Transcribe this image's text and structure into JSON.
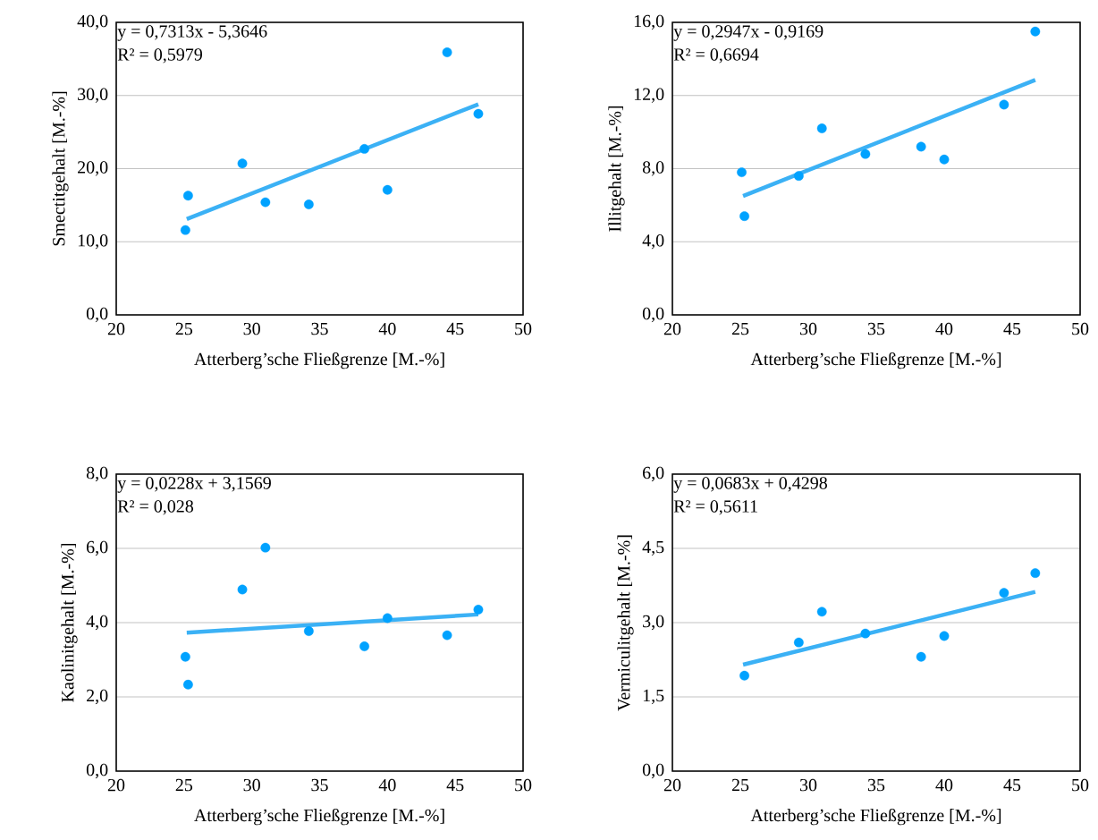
{
  "chart_data": [
    {
      "type": "scatter",
      "xlabel": "Atterberg’sche Fließgrenze [M.-%]",
      "ylabel": "Smectitgehalt [M.-%]",
      "xlim": [
        20,
        50
      ],
      "xticks": [
        20,
        25,
        30,
        35,
        40,
        45,
        50
      ],
      "ylim": [
        0,
        40
      ],
      "yticks": [
        {
          "value": 0,
          "label": "0,0"
        },
        {
          "value": 10,
          "label": "10,0"
        },
        {
          "value": 20,
          "label": "20,0"
        },
        {
          "value": 30,
          "label": "30,0"
        },
        {
          "value": 40,
          "label": "40,0"
        }
      ],
      "grid": "y",
      "annotations": [
        "y = 0,7313x - 5,3646",
        "R² = 0,5979"
      ],
      "series": [
        {
          "marker": "circle",
          "color": "#00a2ff",
          "x": [
            25.1,
            25.3,
            29.3,
            31.0,
            34.2,
            38.3,
            40.0,
            44.4,
            46.7
          ],
          "values": [
            11.6,
            16.3,
            20.7,
            15.4,
            15.1,
            22.7,
            17.1,
            35.9,
            27.5
          ]
        },
        {
          "type": "line",
          "marker": "none",
          "color": "#3bb1f5",
          "x": [
            25.2,
            46.7
          ],
          "values": [
            13.1,
            28.8
          ]
        }
      ]
    },
    {
      "type": "scatter",
      "xlabel": "Atterberg’sche Fließgrenze [M.-%]",
      "ylabel": "Illitgehalt [M.-%]",
      "xlim": [
        20,
        50
      ],
      "xticks": [
        20,
        25,
        30,
        35,
        40,
        45,
        50
      ],
      "ylim": [
        0,
        16
      ],
      "yticks": [
        {
          "value": 0,
          "label": "0,0"
        },
        {
          "value": 4,
          "label": "4,0"
        },
        {
          "value": 8,
          "label": "8,0"
        },
        {
          "value": 12,
          "label": "12,0"
        },
        {
          "value": 16,
          "label": "16,0"
        }
      ],
      "grid": "y",
      "annotations": [
        "y = 0,2947x - 0,9169",
        "R² = 0,6694"
      ],
      "series": [
        {
          "marker": "circle",
          "color": "#00a2ff",
          "x": [
            25.1,
            25.3,
            29.3,
            31.0,
            34.2,
            38.3,
            40.0,
            44.4,
            46.7
          ],
          "values": [
            7.8,
            5.4,
            7.6,
            10.2,
            8.8,
            9.2,
            8.5,
            11.5,
            15.5
          ]
        },
        {
          "type": "line",
          "marker": "none",
          "color": "#3bb1f5",
          "x": [
            25.2,
            46.7
          ],
          "values": [
            6.5,
            12.85
          ]
        }
      ]
    },
    {
      "type": "scatter",
      "xlabel": "Atterberg’sche Fließgrenze [M.-%]",
      "ylabel": "Kaolinitgehalt [M.-%]",
      "xlim": [
        20,
        50
      ],
      "xticks": [
        20,
        25,
        30,
        35,
        40,
        45,
        50
      ],
      "ylim": [
        0,
        8
      ],
      "yticks": [
        {
          "value": 0,
          "label": "0,0"
        },
        {
          "value": 2,
          "label": "2,0"
        },
        {
          "value": 4,
          "label": "4,0"
        },
        {
          "value": 6,
          "label": "6,0"
        },
        {
          "value": 8,
          "label": "8,0"
        }
      ],
      "grid": "y",
      "annotations": [
        "y = 0,0228x + 3,1569",
        "R² = 0,028"
      ],
      "series": [
        {
          "marker": "circle",
          "color": "#00a2ff",
          "x": [
            25.1,
            25.3,
            29.3,
            31.0,
            34.2,
            38.3,
            40.0,
            44.4,
            46.7
          ],
          "values": [
            3.08,
            2.33,
            4.89,
            6.02,
            3.77,
            3.36,
            4.12,
            3.66,
            4.35
          ]
        },
        {
          "type": "line",
          "marker": "none",
          "color": "#3bb1f5",
          "x": [
            25.2,
            46.7
          ],
          "values": [
            3.73,
            4.22
          ]
        }
      ]
    },
    {
      "type": "scatter",
      "xlabel": "Atterberg’sche Fließgrenze [M.-%]",
      "ylabel": "Vermiculitgehalt [M.-%]",
      "xlim": [
        20,
        50
      ],
      "xticks": [
        20,
        25,
        30,
        35,
        40,
        45,
        50
      ],
      "ylim": [
        0,
        6
      ],
      "yticks": [
        {
          "value": 0,
          "label": "0,0"
        },
        {
          "value": 1.5,
          "label": "1,5"
        },
        {
          "value": 3,
          "label": "3,0"
        },
        {
          "value": 4.5,
          "label": "4,5"
        },
        {
          "value": 6,
          "label": "6,0"
        }
      ],
      "grid": "y",
      "annotations": [
        "y = 0,0683x + 0,4298",
        "R² = 0,5611"
      ],
      "series": [
        {
          "marker": "circle",
          "color": "#00a2ff",
          "x": [
            25.3,
            29.3,
            31.0,
            34.2,
            38.3,
            40.0,
            44.4,
            46.7
          ],
          "values": [
            1.93,
            2.6,
            3.22,
            2.78,
            2.31,
            2.73,
            3.6,
            4.0
          ]
        },
        {
          "type": "line",
          "marker": "none",
          "color": "#3bb1f5",
          "x": [
            25.2,
            46.7
          ],
          "values": [
            2.15,
            3.62
          ]
        }
      ]
    }
  ]
}
